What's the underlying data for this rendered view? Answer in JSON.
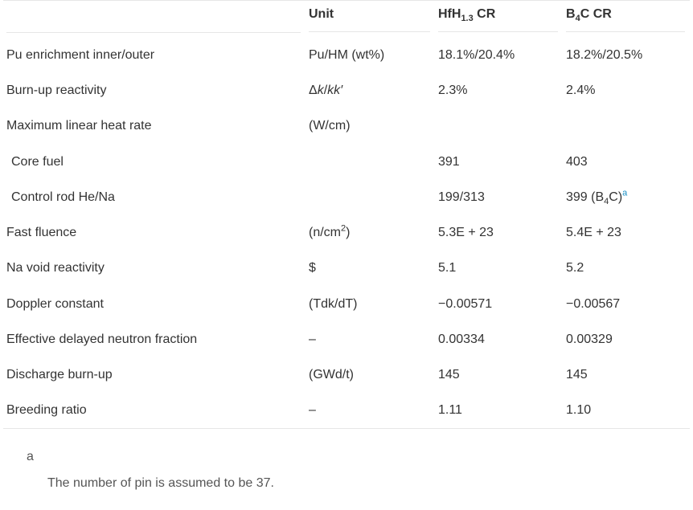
{
  "header": {
    "col_parameter": "",
    "col_unit": "Unit",
    "col_hfh_base": "HfH",
    "col_hfh_sub": "1.3",
    "col_hfh_suffix": " CR",
    "col_b4c_base": "B",
    "col_b4c_sub": "4",
    "col_b4c_suffix": "C CR"
  },
  "rows": [
    {
      "label": "Pu enrichment inner/outer",
      "unit": "Pu/HM (wt%)",
      "hfh": "18.1%/20.4%",
      "b4c": "18.2%/20.5%"
    },
    {
      "label": "Burn-up reactivity",
      "unit_prefix": "Δ",
      "unit_k1": "k",
      "unit_slash": "/",
      "unit_k2": "kk",
      "unit_prime": "′",
      "hfh": "2.3%",
      "b4c": "2.4%"
    },
    {
      "label": "Maximum linear heat rate",
      "unit": "(W/cm)",
      "hfh": "",
      "b4c": ""
    },
    {
      "label": "Core fuel",
      "unit": "",
      "hfh": "391",
      "b4c": "403"
    },
    {
      "label": "Control rod He/Na",
      "unit": "",
      "hfh": "199/313",
      "b4c_a": "399 (B",
      "b4c_sub": "4",
      "b4c_b": "C)",
      "b4c_fnref": "a"
    },
    {
      "label": "Fast fluence",
      "unit_a": "(n/cm",
      "unit_sup": "2",
      "unit_b": ")",
      "hfh": "5.3E + 23",
      "b4c": "5.4E + 23"
    },
    {
      "label": "Na void reactivity",
      "unit": "$",
      "hfh": "5.1",
      "b4c": "5.2"
    },
    {
      "label": "Doppler constant",
      "unit": "(Tdk/dT)",
      "hfh": "−0.00571",
      "b4c": "−0.00567"
    },
    {
      "label": "Effective delayed neutron fraction",
      "unit": "–",
      "hfh": "0.00334",
      "b4c": "0.00329"
    },
    {
      "label": "Discharge burn-up",
      "unit": "(GWd/t)",
      "hfh": "145",
      "b4c": "145"
    },
    {
      "label": "Breeding ratio",
      "unit": "–",
      "hfh": "1.11",
      "b4c": "1.10"
    }
  ],
  "footnote": {
    "label": "a",
    "text": "The number of pin is assumed to be 37."
  }
}
